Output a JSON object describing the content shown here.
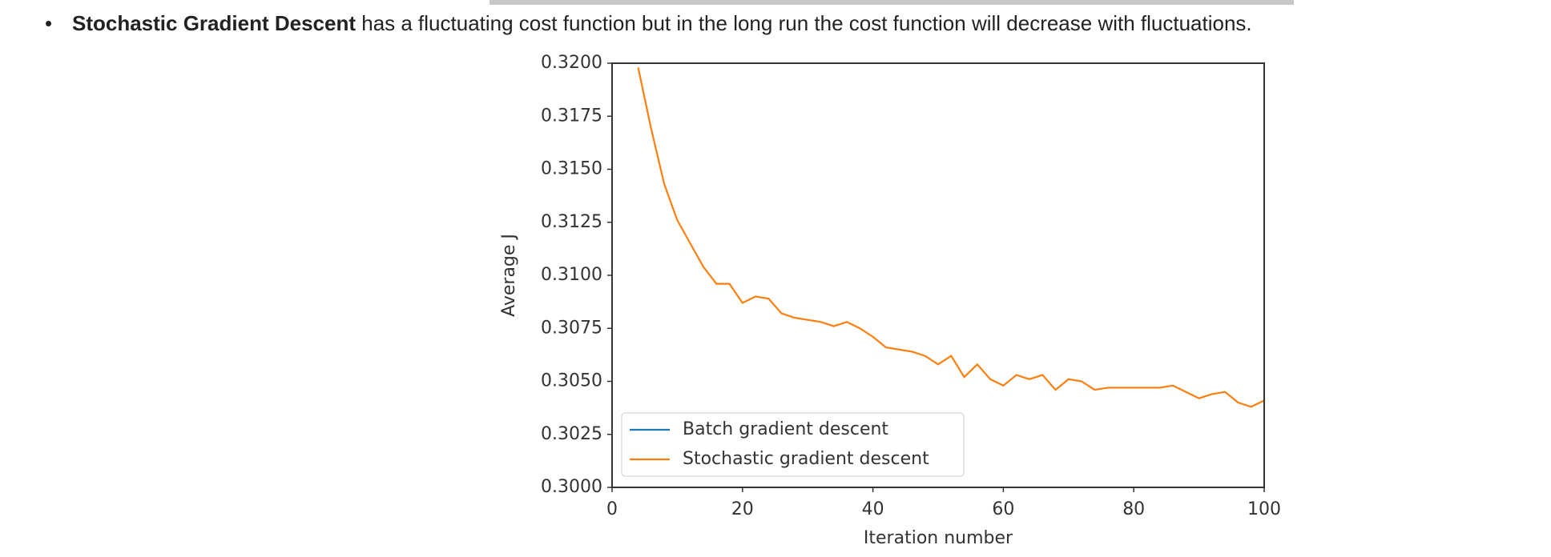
{
  "bullet": {
    "bold": "Stochastic Gradient Descent",
    "text": "has a fluctuating cost function but in the long run the cost function will decrease with fluctuations."
  },
  "chart_data": {
    "type": "line",
    "xlabel": "Iteration number",
    "ylabel": "Average J",
    "x": [
      4,
      6,
      8,
      10,
      12,
      14,
      16,
      18,
      20,
      22,
      24,
      26,
      28,
      30,
      32,
      34,
      36,
      38,
      40,
      42,
      44,
      46,
      48,
      50,
      52,
      54,
      56,
      58,
      60,
      62,
      64,
      66,
      68,
      70,
      72,
      74,
      76,
      78,
      80,
      82,
      84,
      86,
      88,
      90,
      92,
      94,
      96,
      98,
      100
    ],
    "series": [
      {
        "name": "Batch gradient descent",
        "color": "#1f77b4",
        "values": [
          null,
          null,
          null,
          null,
          null,
          null,
          null,
          null,
          null,
          null,
          null,
          null,
          null,
          null,
          null,
          null,
          null,
          null,
          null,
          null,
          null,
          null,
          null,
          null,
          null,
          null,
          null,
          null,
          null,
          null,
          null,
          null,
          null,
          null,
          null,
          null,
          null,
          null,
          null,
          null,
          null,
          null,
          null,
          null,
          null,
          null,
          null,
          null,
          null
        ]
      },
      {
        "name": "Stochastic gradient descent",
        "color": "#ff7f0e",
        "values": [
          0.3198,
          0.3169,
          0.3143,
          0.3126,
          0.3115,
          0.3104,
          0.3096,
          0.3096,
          0.3087,
          0.309,
          0.3089,
          0.3082,
          0.308,
          0.3079,
          0.3078,
          0.3076,
          0.3078,
          0.3075,
          0.3071,
          0.3066,
          0.3065,
          0.3064,
          0.3062,
          0.3058,
          0.3062,
          0.3052,
          0.3058,
          0.3051,
          0.3048,
          0.3053,
          0.3051,
          0.3053,
          0.3046,
          0.3051,
          0.305,
          0.3046,
          0.3047,
          0.3047,
          0.3047,
          0.3047,
          0.3047,
          0.3048,
          0.3045,
          0.3042,
          0.3044,
          0.3045,
          0.304,
          0.3038,
          0.3041
        ]
      }
    ],
    "xlim": [
      0,
      100
    ],
    "xticks": [
      0,
      20,
      40,
      60,
      80,
      100
    ],
    "ylim": [
      0.3,
      0.32
    ],
    "yticks": [
      {
        "value": 0.3,
        "label": "0.3000"
      },
      {
        "value": 0.3025,
        "label": "0.3025"
      },
      {
        "value": 0.305,
        "label": "0.3050"
      },
      {
        "value": 0.3075,
        "label": "0.3075"
      },
      {
        "value": 0.31,
        "label": "0.3100"
      },
      {
        "value": 0.3125,
        "label": "0.3125"
      },
      {
        "value": 0.315,
        "label": "0.3150"
      },
      {
        "value": 0.3175,
        "label": "0.3175"
      },
      {
        "value": 0.32,
        "label": "0.3200"
      }
    ],
    "grid": false,
    "legend": "lower left"
  }
}
